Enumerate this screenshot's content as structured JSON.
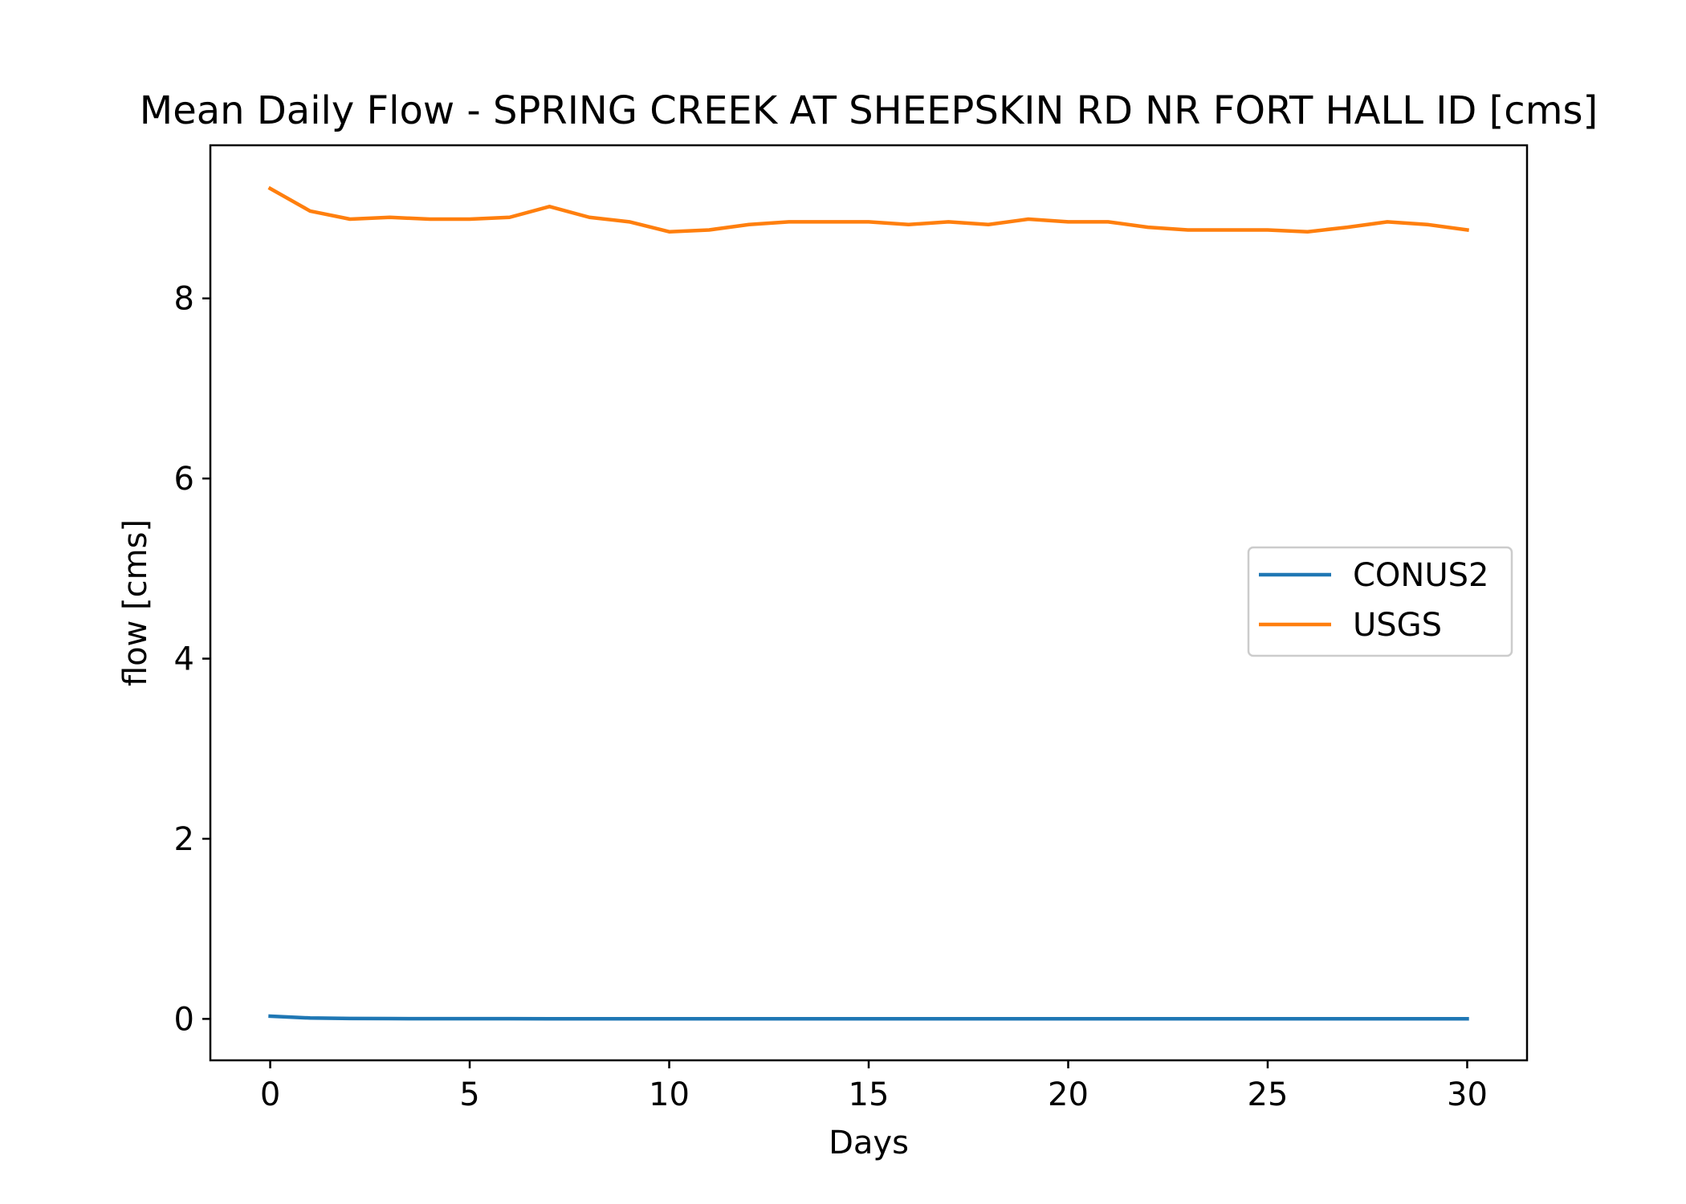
{
  "chart_data": {
    "type": "line",
    "title": "Mean Daily Flow - SPRING CREEK AT SHEEPSKIN RD NR FORT HALL ID [cms]",
    "xlabel": "Days",
    "ylabel": "flow [cms]",
    "xlim": [
      -1.5,
      31.5
    ],
    "ylim": [
      -0.46,
      9.7
    ],
    "xticks": [
      "0",
      "5",
      "10",
      "15",
      "20",
      "25",
      "30"
    ],
    "yticks": [
      "0",
      "2",
      "4",
      "6",
      "8"
    ],
    "grid": false,
    "legend_position": "center-right",
    "x": [
      0,
      1,
      2,
      3,
      4,
      5,
      6,
      7,
      8,
      9,
      10,
      11,
      12,
      13,
      14,
      15,
      16,
      17,
      18,
      19,
      20,
      21,
      22,
      23,
      24,
      25,
      26,
      27,
      28,
      29,
      30
    ],
    "series": [
      {
        "name": "CONUS2",
        "color": "#1f77b4",
        "values": [
          0.03,
          0.01,
          0.005,
          0.003,
          0.002,
          0.002,
          0.002,
          0.001,
          0.001,
          0.001,
          0.001,
          0.001,
          0.001,
          0.001,
          0.001,
          0.001,
          0.001,
          0.001,
          0.001,
          0.001,
          0.001,
          0.001,
          0.001,
          0.001,
          0.001,
          0.001,
          0.001,
          0.001,
          0.001,
          0.001,
          0.001
        ]
      },
      {
        "name": "USGS",
        "color": "#ff7f0e",
        "values": [
          9.22,
          8.97,
          8.88,
          8.9,
          8.88,
          8.88,
          8.9,
          9.02,
          8.9,
          8.85,
          8.74,
          8.76,
          8.82,
          8.85,
          8.85,
          8.85,
          8.82,
          8.85,
          8.82,
          8.88,
          8.85,
          8.85,
          8.79,
          8.76,
          8.76,
          8.76,
          8.74,
          8.79,
          8.85,
          8.82,
          8.76
        ]
      }
    ]
  }
}
